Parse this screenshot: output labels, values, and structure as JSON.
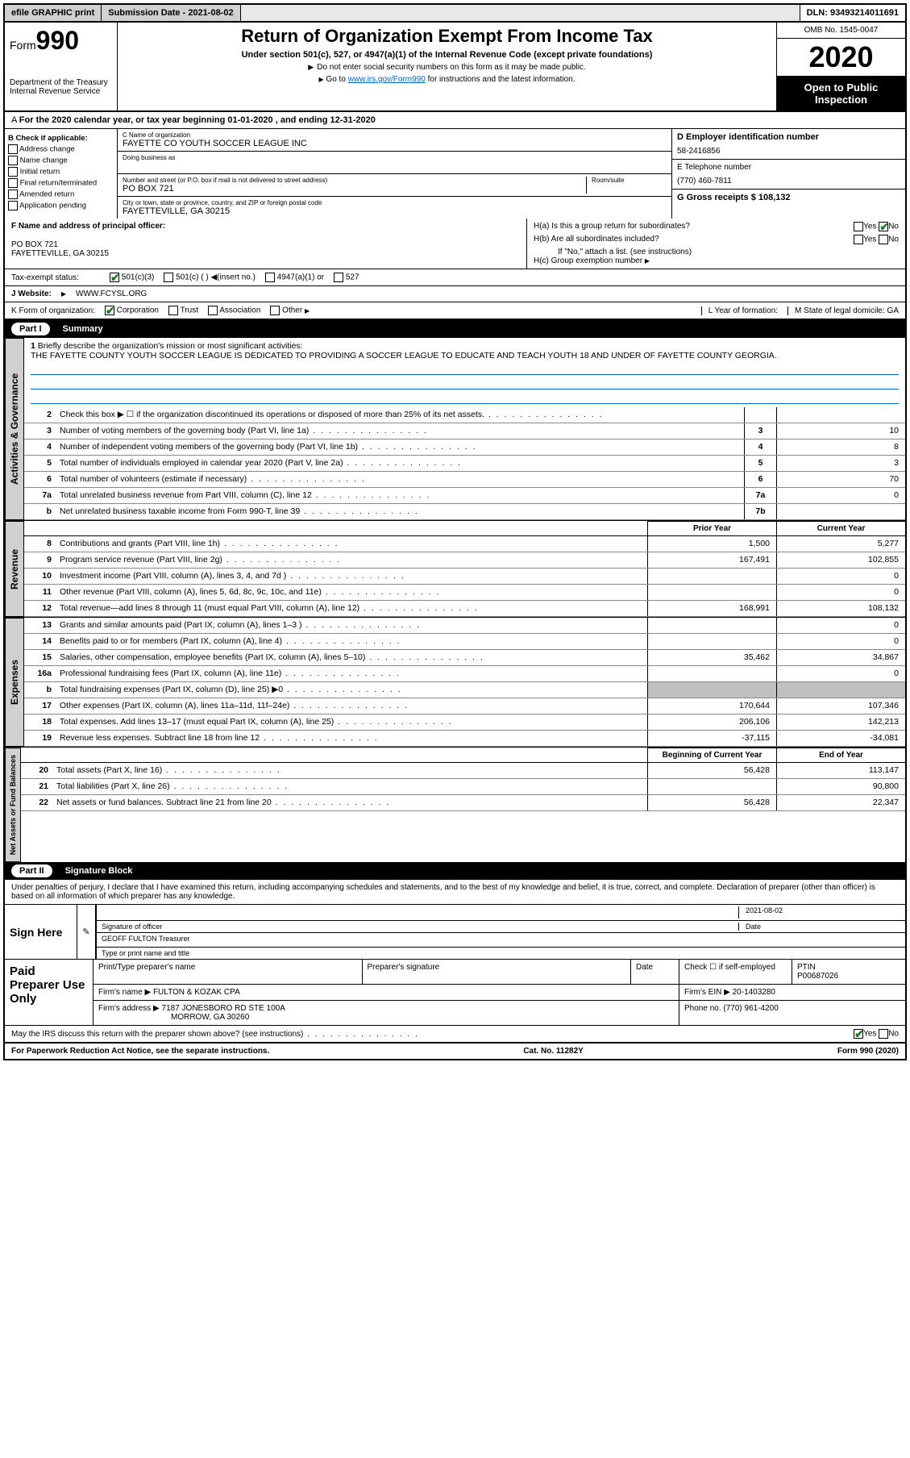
{
  "topbar": {
    "efile": "efile GRAPHIC print",
    "subdate_lbl": "Submission Date - 2021-08-02",
    "dln": "DLN: 93493214011691"
  },
  "header": {
    "form": "Form",
    "formno": "990",
    "dept": "Department of the Treasury Internal Revenue Service",
    "title": "Return of Organization Exempt From Income Tax",
    "sub": "Under section 501(c), 527, or 4947(a)(1) of the Internal Revenue Code (except private foundations)",
    "note1": "Do not enter social security numbers on this form as it may be made public.",
    "note2_a": "Go to ",
    "note2_link": "www.irs.gov/Form990",
    "note2_b": " for instructions and the latest information.",
    "omb": "OMB No. 1545-0047",
    "year": "2020",
    "public": "Open to Public Inspection"
  },
  "taxyear": "For the 2020 calendar year, or tax year beginning 01-01-2020    , and ending 12-31-2020",
  "checks": {
    "title": "B Check if applicable:",
    "items": [
      "Address change",
      "Name change",
      "Initial return",
      "Final return/terminated",
      "Amended return",
      "Application pending"
    ]
  },
  "org": {
    "name_lbl": "C Name of organization",
    "name": "FAYETTE CO YOUTH SOCCER LEAGUE INC",
    "dba_lbl": "Doing business as",
    "addr_lbl": "Number and street (or P.O. box if mail is not delivered to street address)",
    "room_lbl": "Room/suite",
    "addr": "PO BOX 721",
    "city_lbl": "City or town, state or province, country, and ZIP or foreign postal code",
    "city": "FAYETTEVILLE, GA   30215"
  },
  "right": {
    "ein_lbl": "D Employer identification number",
    "ein": "58-2416856",
    "tel_lbl": "E Telephone number",
    "tel": "(770) 460-7811",
    "gross_lbl": "G Gross receipts $ 108,132"
  },
  "officer": {
    "lbl": "F  Name and address of principal officer:",
    "addr1": "PO BOX 721",
    "addr2": "FAYETTEVILLE, GA   30215",
    "ha": "H(a)  Is this a group return for subordinates?",
    "hb": "H(b)  Are all subordinates included?",
    "hb_note": "If \"No,\" attach a list. (see instructions)",
    "hc": "H(c)  Group exemption number",
    "yes": "Yes",
    "no": "No"
  },
  "status": {
    "lbl": "Tax-exempt status:",
    "a": "501(c)(3)",
    "b": "501(c) (   )",
    "b2": "(insert no.)",
    "c": "4947(a)(1) or",
    "d": "527"
  },
  "website": {
    "lbl": "Website:",
    "val": "WWW.FCYSL.ORG"
  },
  "korg": {
    "lbl": "K Form of organization:",
    "corp": "Corporation",
    "trust": "Trust",
    "assoc": "Association",
    "other": "Other",
    "year_lbl": "L Year of formation:",
    "state_lbl": "M State of legal domicile: GA"
  },
  "part1": {
    "no": "Part I",
    "title": "Summary"
  },
  "mission": {
    "num": "1",
    "lbl": "Briefly describe the organization's mission or most significant activities:",
    "txt": "THE FAYETTE COUNTY YOUTH SOCCER LEAGUE IS DEDICATED TO PROVIDING A SOCCER LEAGUE TO EDUCATE AND TEACH YOUTH 18 AND UNDER OF FAYETTE COUNTY GEORGIA."
  },
  "gov_lines": [
    {
      "n": "2",
      "t": "Check this box ▶ ☐  if the organization discontinued its operations or disposed of more than 25% of its net assets.",
      "box": "",
      "v": ""
    },
    {
      "n": "3",
      "t": "Number of voting members of the governing body (Part VI, line 1a)",
      "box": "3",
      "v": "10"
    },
    {
      "n": "4",
      "t": "Number of independent voting members of the governing body (Part VI, line 1b)",
      "box": "4",
      "v": "8"
    },
    {
      "n": "5",
      "t": "Total number of individuals employed in calendar year 2020 (Part V, line 2a)",
      "box": "5",
      "v": "3"
    },
    {
      "n": "6",
      "t": "Total number of volunteers (estimate if necessary)",
      "box": "6",
      "v": "70"
    },
    {
      "n": "7a",
      "t": "Total unrelated business revenue from Part VIII, column (C), line 12",
      "box": "7a",
      "v": "0"
    },
    {
      "n": "b",
      "t": "Net unrelated business taxable income from Form 990-T, line 39",
      "box": "7b",
      "v": ""
    }
  ],
  "colhdr": {
    "py": "Prior Year",
    "cy": "Current Year",
    "boy": "Beginning of Current Year",
    "eoy": "End of Year"
  },
  "rev_lines": [
    {
      "n": "8",
      "t": "Contributions and grants (Part VIII, line 1h)",
      "py": "1,500",
      "cy": "5,277"
    },
    {
      "n": "9",
      "t": "Program service revenue (Part VIII, line 2g)",
      "py": "167,491",
      "cy": "102,855"
    },
    {
      "n": "10",
      "t": "Investment income (Part VIII, column (A), lines 3, 4, and 7d )",
      "py": "",
      "cy": "0"
    },
    {
      "n": "11",
      "t": "Other revenue (Part VIII, column (A), lines 5, 6d, 8c, 9c, 10c, and 11e)",
      "py": "",
      "cy": "0"
    },
    {
      "n": "12",
      "t": "Total revenue—add lines 8 through 11 (must equal Part VIII, column (A), line 12)",
      "py": "168,991",
      "cy": "108,132"
    }
  ],
  "exp_lines": [
    {
      "n": "13",
      "t": "Grants and similar amounts paid (Part IX, column (A), lines 1–3 )",
      "py": "",
      "cy": "0"
    },
    {
      "n": "14",
      "t": "Benefits paid to or for members (Part IX, column (A), line 4)",
      "py": "",
      "cy": "0"
    },
    {
      "n": "15",
      "t": "Salaries, other compensation, employee benefits (Part IX, column (A), lines 5–10)",
      "py": "35,462",
      "cy": "34,867"
    },
    {
      "n": "16a",
      "t": "Professional fundraising fees (Part IX, column (A), line 11e)",
      "py": "",
      "cy": "0"
    },
    {
      "n": "b",
      "t": "Total fundraising expenses (Part IX, column (D), line 25) ▶0",
      "py": "GREY",
      "cy": "GREY"
    },
    {
      "n": "17",
      "t": "Other expenses (Part IX, column (A), lines 11a–11d, 11f–24e)",
      "py": "170,644",
      "cy": "107,346"
    },
    {
      "n": "18",
      "t": "Total expenses. Add lines 13–17 (must equal Part IX, column (A), line 25)",
      "py": "206,106",
      "cy": "142,213"
    },
    {
      "n": "19",
      "t": "Revenue less expenses. Subtract line 18 from line 12",
      "py": "-37,115",
      "cy": "-34,081"
    }
  ],
  "net_lines": [
    {
      "n": "20",
      "t": "Total assets (Part X, line 16)",
      "py": "56,428",
      "cy": "113,147"
    },
    {
      "n": "21",
      "t": "Total liabilities (Part X, line 26)",
      "py": "",
      "cy": "90,800"
    },
    {
      "n": "22",
      "t": "Net assets or fund balances. Subtract line 21 from line 20",
      "py": "56,428",
      "cy": "22,347"
    }
  ],
  "tabs": {
    "gov": "Activities & Governance",
    "rev": "Revenue",
    "exp": "Expenses",
    "net": "Net Assets or Fund Balances"
  },
  "part2": {
    "no": "Part II",
    "title": "Signature Block"
  },
  "penalty": "Under penalties of perjury, I declare that I have examined this return, including accompanying schedules and statements, and to the best of my knowledge and belief, it is true, correct, and complete. Declaration of preparer (other than officer) is based on all information of which preparer has any knowledge.",
  "sign": {
    "here": "Sign Here",
    "sig_lbl": "Signature of officer",
    "date_lbl": "Date",
    "date": "2021-08-02",
    "name": "GEOFF FULTON Treasurer",
    "name_lbl": "Type or print name and title"
  },
  "prep": {
    "title": "Paid Preparer Use Only",
    "pn_lbl": "Print/Type preparer's name",
    "ps_lbl": "Preparer's signature",
    "date_lbl": "Date",
    "check_lbl": "Check ☐ if self-employed",
    "ptin_lbl": "PTIN",
    "ptin": "P00687026",
    "firm_lbl": "Firm's name    ▶",
    "firm": "FULTON & KOZAK CPA",
    "ein_lbl": "Firm's EIN ▶",
    "ein": "20-1403280",
    "addr_lbl": "Firm's address ▶",
    "addr1": "7187 JONESBORO RD STE 100A",
    "addr2": "MORROW, GA   30260",
    "phone_lbl": "Phone no.",
    "phone": "(770) 961-4200"
  },
  "discuss": "May the IRS discuss this return with the preparer shown above? (see instructions)",
  "footer": {
    "a": "For Paperwork Reduction Act Notice, see the separate instructions.",
    "b": "Cat. No. 11282Y",
    "c": "Form 990 (2020)"
  },
  "colors": {
    "link": "#0066cc",
    "grey": "#c0c0c0",
    "check": "#1a7a1a"
  }
}
